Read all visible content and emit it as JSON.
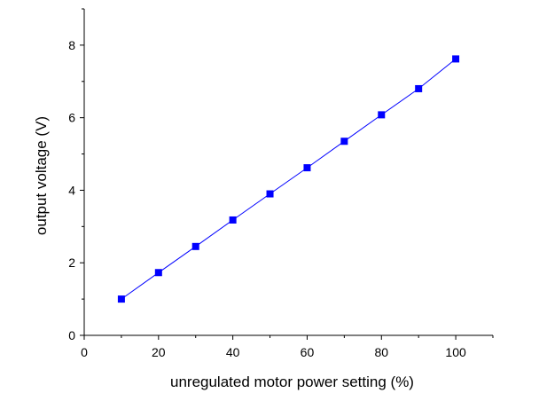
{
  "chart_data": {
    "type": "scatter",
    "title": "",
    "xlabel": "unregulated motor power setting (%)",
    "ylabel": "output voltage (V)",
    "xlim": [
      0,
      110
    ],
    "ylim": [
      0,
      9
    ],
    "x_ticks": [
      0,
      20,
      40,
      60,
      80,
      100
    ],
    "y_ticks": [
      0,
      2,
      4,
      6,
      8
    ],
    "grid": false,
    "legend": "none",
    "series": [
      {
        "x": [
          10,
          20,
          30,
          40,
          50,
          60,
          70,
          80,
          90,
          100
        ],
        "y": [
          1.0,
          1.73,
          2.45,
          3.18,
          3.9,
          4.62,
          5.35,
          6.08,
          6.8,
          7.62
        ],
        "marker": "square",
        "line": "connected",
        "color": "#0000ff"
      }
    ]
  }
}
